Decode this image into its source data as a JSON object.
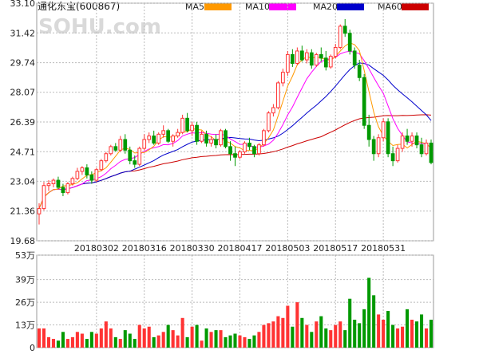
{
  "chart_data": {
    "type": "candlestick",
    "title": "通化东宝(600867)",
    "watermark": "SOHU.com",
    "legend": [
      {
        "name": "MA5",
        "color": "#ff9900"
      },
      {
        "name": "MA10",
        "color": "#ff00ff"
      },
      {
        "name": "MA20",
        "color": "#0000cc"
      },
      {
        "name": "MA60",
        "color": "#cc0000"
      }
    ],
    "price_axis": {
      "ticks": [
        "33.10",
        "31.42",
        "29.74",
        "28.07",
        "26.39",
        "24.71",
        "23.04",
        "21.36",
        "19.68"
      ],
      "ylim": [
        19.68,
        33.1
      ]
    },
    "x_tick_labels": [
      {
        "label": "20180302",
        "index": 12
      },
      {
        "label": "20180316",
        "index": 22
      },
      {
        "label": "20180330",
        "index": 32
      },
      {
        "label": "20180417",
        "index": 42
      },
      {
        "label": "20180503",
        "index": 52
      },
      {
        "label": "20180517",
        "index": 62
      },
      {
        "label": "20180531",
        "index": 72
      }
    ],
    "volume_axis": {
      "ticks": [
        "53万",
        "39万",
        "26万",
        "13万",
        "0"
      ],
      "ylim": [
        0,
        53
      ]
    },
    "up_color": "#ff3333",
    "down_color": "#009900",
    "candles": [
      [
        21.2,
        21.8,
        20.6,
        21.5,
        11
      ],
      [
        21.5,
        23.0,
        21.4,
        22.8,
        11
      ],
      [
        22.8,
        23.1,
        22.5,
        22.9,
        6
      ],
      [
        22.9,
        23.2,
        22.7,
        23.1,
        5
      ],
      [
        23.1,
        23.3,
        22.6,
        22.7,
        4
      ],
      [
        22.7,
        22.9,
        22.2,
        22.4,
        9
      ],
      [
        22.4,
        23.0,
        22.3,
        22.9,
        5
      ],
      [
        22.9,
        23.3,
        22.8,
        23.2,
        6
      ],
      [
        23.2,
        23.8,
        23.1,
        23.6,
        9
      ],
      [
        23.6,
        23.9,
        23.4,
        23.8,
        8
      ],
      [
        23.8,
        24.0,
        23.2,
        23.4,
        5
      ],
      [
        23.4,
        23.6,
        22.9,
        23.1,
        9
      ],
      [
        23.1,
        23.8,
        23.0,
        23.7,
        8
      ],
      [
        23.7,
        24.3,
        23.6,
        24.2,
        11
      ],
      [
        24.2,
        24.7,
        24.1,
        24.6,
        15
      ],
      [
        24.6,
        25.1,
        24.5,
        25.0,
        11
      ],
      [
        25.0,
        25.2,
        24.7,
        24.8,
        6
      ],
      [
        24.8,
        25.6,
        24.7,
        25.4,
        5
      ],
      [
        25.4,
        25.7,
        24.6,
        24.8,
        10
      ],
      [
        24.8,
        25.0,
        24.0,
        24.2,
        8
      ],
      [
        24.2,
        24.5,
        23.8,
        24.0,
        5
      ],
      [
        24.0,
        25.0,
        23.9,
        24.9,
        13
      ],
      [
        24.9,
        25.7,
        24.8,
        25.4,
        11
      ],
      [
        25.4,
        25.8,
        25.2,
        25.6,
        12
      ],
      [
        25.6,
        25.9,
        25.1,
        25.2,
        6
      ],
      [
        25.2,
        25.8,
        25.1,
        25.7,
        7
      ],
      [
        25.7,
        26.2,
        25.5,
        25.9,
        9
      ],
      [
        25.9,
        26.0,
        25.2,
        25.3,
        13
      ],
      [
        25.3,
        25.7,
        25.0,
        25.6,
        10
      ],
      [
        25.6,
        26.0,
        25.5,
        25.8,
        7
      ],
      [
        25.8,
        26.8,
        25.7,
        26.6,
        17
      ],
      [
        26.6,
        26.9,
        25.8,
        25.9,
        6
      ],
      [
        25.9,
        26.4,
        25.6,
        26.2,
        12
      ],
      [
        26.2,
        26.4,
        25.1,
        25.3,
        13
      ],
      [
        25.3,
        25.9,
        25.2,
        25.7,
        4
      ],
      [
        25.7,
        25.9,
        25.0,
        25.2,
        11
      ],
      [
        25.2,
        25.6,
        25.0,
        25.4,
        9
      ],
      [
        25.4,
        25.7,
        24.9,
        25.1,
        10
      ],
      [
        25.1,
        26.0,
        25.0,
        25.9,
        10
      ],
      [
        25.9,
        26.0,
        24.9,
        25.0,
        6
      ],
      [
        25.0,
        25.3,
        24.2,
        24.6,
        7
      ],
      [
        24.6,
        25.0,
        23.9,
        24.4,
        8
      ],
      [
        24.4,
        24.8,
        24.3,
        24.7,
        7
      ],
      [
        24.7,
        25.3,
        24.6,
        25.2,
        6
      ],
      [
        25.2,
        25.5,
        24.8,
        25.0,
        5
      ],
      [
        25.0,
        25.1,
        24.4,
        24.6,
        7
      ],
      [
        24.6,
        25.2,
        24.5,
        25.1,
        9
      ],
      [
        25.1,
        26.0,
        25.0,
        25.9,
        13
      ],
      [
        25.9,
        27.0,
        25.8,
        26.9,
        14
      ],
      [
        26.9,
        27.4,
        26.7,
        27.2,
        15
      ],
      [
        27.2,
        28.7,
        27.1,
        28.6,
        18
      ],
      [
        28.6,
        29.4,
        28.4,
        29.2,
        17
      ],
      [
        29.2,
        30.4,
        29.0,
        30.2,
        24
      ],
      [
        30.2,
        30.5,
        29.5,
        29.7,
        12
      ],
      [
        29.7,
        30.6,
        29.6,
        30.4,
        26
      ],
      [
        30.4,
        30.7,
        29.8,
        29.9,
        17
      ],
      [
        29.9,
        30.5,
        29.7,
        30.3,
        13
      ],
      [
        30.3,
        30.5,
        29.4,
        29.6,
        9
      ],
      [
        29.6,
        30.3,
        29.5,
        30.2,
        15
      ],
      [
        30.2,
        30.6,
        29.8,
        30.0,
        18
      ],
      [
        30.0,
        30.4,
        29.3,
        29.5,
        11
      ],
      [
        29.5,
        30.2,
        29.4,
        30.1,
        10
      ],
      [
        30.1,
        30.8,
        30.0,
        30.6,
        13
      ],
      [
        30.6,
        31.9,
        30.5,
        31.8,
        15
      ],
      [
        31.8,
        32.2,
        31.2,
        31.4,
        10
      ],
      [
        31.4,
        31.6,
        30.2,
        30.4,
        28
      ],
      [
        30.4,
        30.6,
        29.4,
        29.6,
        16
      ],
      [
        29.6,
        29.9,
        28.7,
        28.9,
        14
      ],
      [
        28.9,
        29.1,
        26.0,
        26.2,
        22
      ],
      [
        26.2,
        26.8,
        25.0,
        25.4,
        40
      ],
      [
        25.4,
        25.6,
        24.2,
        24.6,
        30
      ],
      [
        24.6,
        25.7,
        24.4,
        25.5,
        19
      ],
      [
        25.5,
        26.6,
        25.3,
        26.4,
        16
      ],
      [
        26.4,
        26.6,
        24.4,
        24.6,
        21
      ],
      [
        24.6,
        25.0,
        23.9,
        24.2,
        13
      ],
      [
        24.2,
        25.1,
        24.1,
        24.9,
        11
      ],
      [
        24.9,
        25.8,
        24.7,
        25.6,
        12
      ],
      [
        25.6,
        26.0,
        25.1,
        25.3,
        22
      ],
      [
        25.3,
        25.8,
        25.0,
        25.6,
        16
      ],
      [
        25.6,
        25.8,
        24.9,
        25.1,
        15
      ],
      [
        25.1,
        25.5,
        24.4,
        24.6,
        19
      ],
      [
        24.6,
        25.4,
        24.5,
        25.2,
        11
      ],
      [
        25.2,
        25.4,
        24.0,
        24.1,
        16
      ]
    ]
  }
}
